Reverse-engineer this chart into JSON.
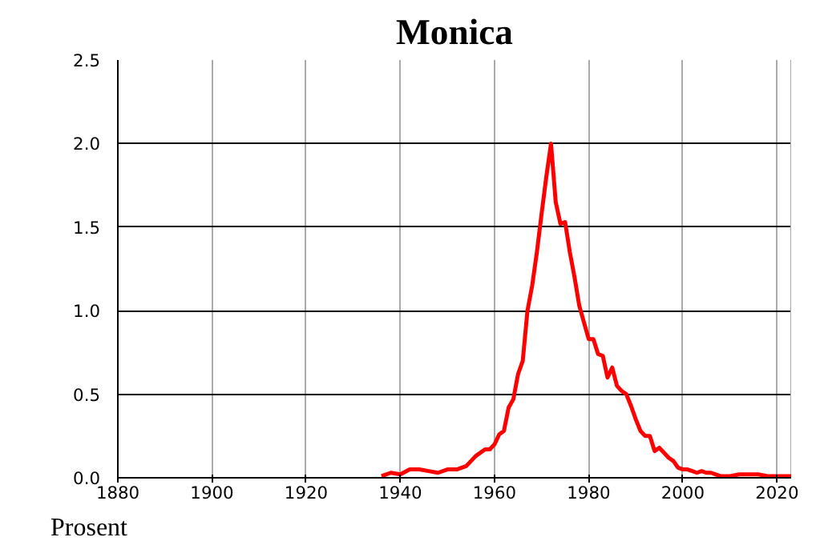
{
  "chart_data": {
    "type": "line",
    "title": "Monica",
    "ylabel": "Prosent",
    "x": [
      1936,
      1938,
      1940,
      1942,
      1944,
      1946,
      1948,
      1950,
      1952,
      1954,
      1956,
      1958,
      1959,
      1960,
      1961,
      1962,
      1963,
      1964,
      1965,
      1966,
      1967,
      1968,
      1969,
      1970,
      1971,
      1972,
      1973,
      1974,
      1975,
      1976,
      1977,
      1978,
      1979,
      1980,
      1981,
      1982,
      1983,
      1984,
      1985,
      1986,
      1987,
      1988,
      1989,
      1990,
      1991,
      1992,
      1993,
      1994,
      1995,
      1996,
      1997,
      1998,
      1999,
      2000,
      2001,
      2002,
      2003,
      2004,
      2005,
      2006,
      2007,
      2008,
      2010,
      2012,
      2014,
      2016,
      2018,
      2020,
      2022,
      2023
    ],
    "series": [
      {
        "color": "#ff0000",
        "values": [
          0.01,
          0.03,
          0.02,
          0.05,
          0.05,
          0.04,
          0.03,
          0.05,
          0.05,
          0.07,
          0.13,
          0.17,
          0.17,
          0.2,
          0.26,
          0.28,
          0.42,
          0.47,
          0.62,
          0.7,
          1.0,
          1.15,
          1.35,
          1.58,
          1.8,
          2.0,
          1.65,
          1.52,
          1.53,
          1.35,
          1.2,
          1.03,
          0.93,
          0.83,
          0.83,
          0.74,
          0.73,
          0.6,
          0.66,
          0.55,
          0.52,
          0.5,
          0.43,
          0.35,
          0.28,
          0.25,
          0.25,
          0.16,
          0.18,
          0.15,
          0.12,
          0.1,
          0.06,
          0.05,
          0.05,
          0.04,
          0.03,
          0.04,
          0.03,
          0.03,
          0.02,
          0.01,
          0.01,
          0.02,
          0.02,
          0.02,
          0.01,
          0.01,
          0.01,
          0.01
        ]
      }
    ],
    "xlim": [
      1880,
      2023
    ],
    "xticks": [
      1880,
      1900,
      1920,
      1940,
      1960,
      1980,
      2000,
      2020
    ],
    "ylim": [
      0,
      2.5
    ],
    "yticks": [
      {
        "value": 0,
        "label": "0.0"
      },
      {
        "value": 0.5,
        "label": "0.5"
      },
      {
        "value": 1,
        "label": "1.0"
      },
      {
        "value": 1.5,
        "label": "1.5"
      },
      {
        "value": 2,
        "label": "2.0"
      },
      {
        "value": 2.5,
        "label": "2.5"
      }
    ],
    "grid": true,
    "line_style": "solid",
    "marker": "none"
  }
}
